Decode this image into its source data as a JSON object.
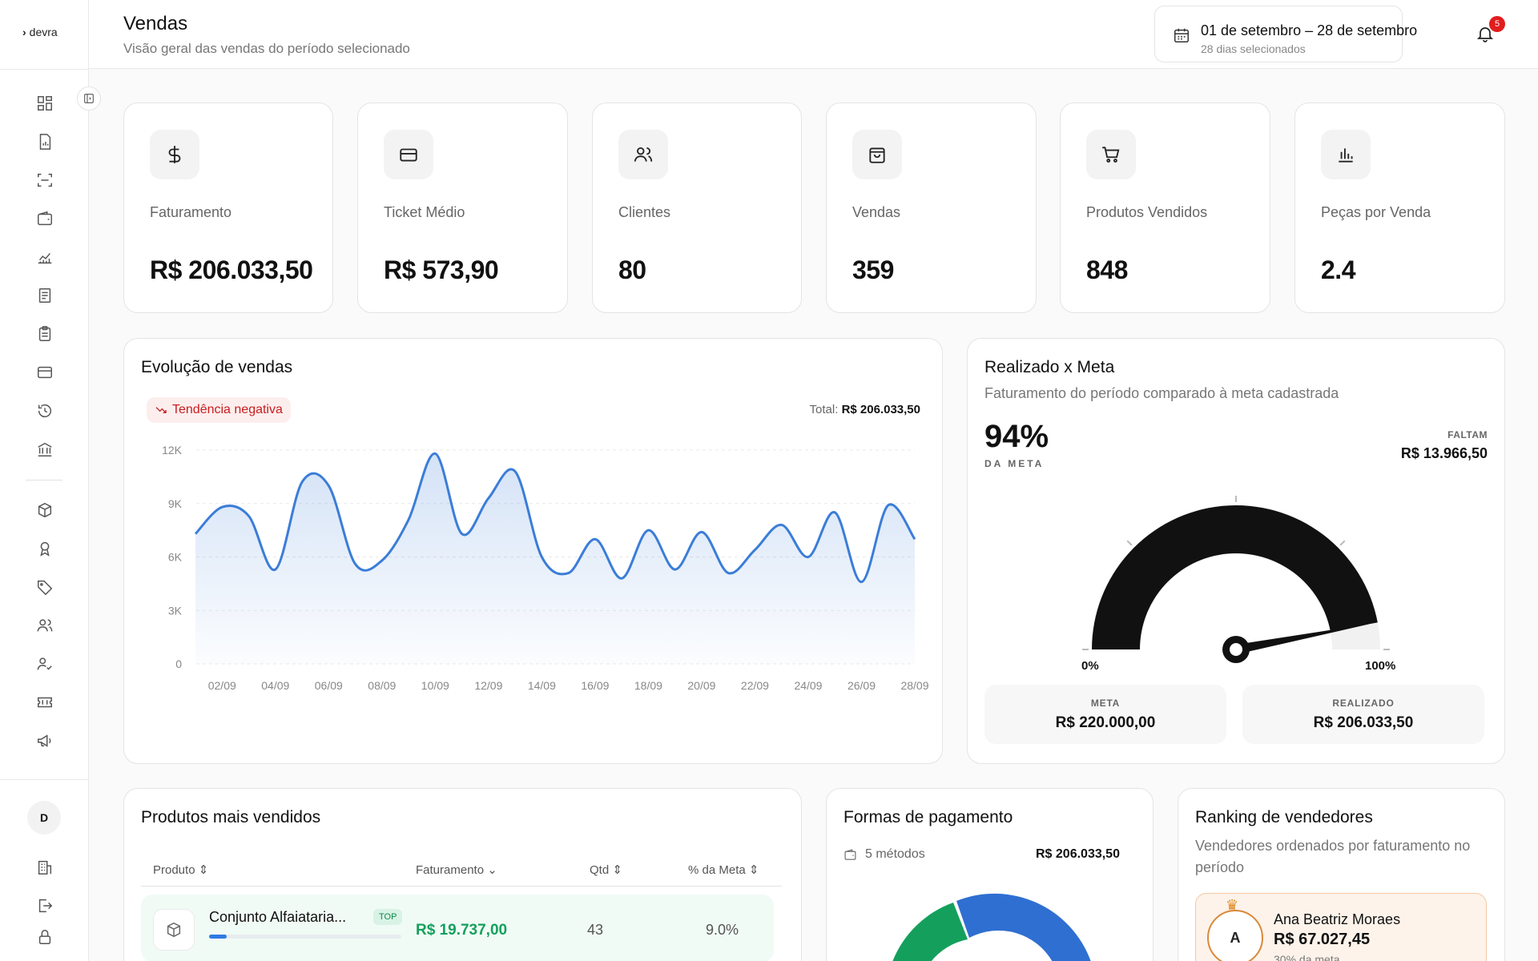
{
  "brand": "devra",
  "header": {
    "title": "Vendas",
    "subtitle": "Visão geral das vendas do período selecionado",
    "date_range": "01 de setembro – 28 de setembro",
    "date_days": "28 dias selecionados",
    "notifications_count": "5"
  },
  "sidebar": {
    "icons": [
      "dashboard-icon",
      "report-icon",
      "scan-icon",
      "wallet-icon",
      "chart-line-icon",
      "document-icon",
      "clipboard-icon",
      "card-icon",
      "history-icon",
      "bank-icon",
      "box-icon",
      "award-icon",
      "tag-icon",
      "users-icon",
      "user-check-icon",
      "ticket-icon",
      "megaphone-icon"
    ],
    "user_initial": "D",
    "bottom_icons": [
      "building-icon",
      "logout-icon",
      "lock-icon"
    ]
  },
  "kpis": [
    {
      "label": "Faturamento",
      "value": "R$ 206.033,50",
      "icon": "dollar-icon"
    },
    {
      "label": "Ticket Médio",
      "value": "R$ 573,90",
      "icon": "credit-card-icon"
    },
    {
      "label": "Clientes",
      "value": "80",
      "icon": "users-icon"
    },
    {
      "label": "Vendas",
      "value": "359",
      "icon": "shopping-bag-icon"
    },
    {
      "label": "Produtos Vendidos",
      "value": "848",
      "icon": "cart-icon"
    },
    {
      "label": "Peças por Venda",
      "value": "2.4",
      "icon": "bar-chart-icon"
    }
  ],
  "evolution": {
    "title": "Evolução de vendas",
    "trend": "Tendência negativa",
    "total_label": "Total:",
    "total_value": "R$ 206.033,50"
  },
  "chart_data": {
    "type": "area",
    "x": [
      "01/09",
      "02/09",
      "03/09",
      "04/09",
      "05/09",
      "06/09",
      "07/09",
      "08/09",
      "09/09",
      "10/09",
      "11/09",
      "12/09",
      "13/09",
      "14/09",
      "15/09",
      "16/09",
      "17/09",
      "18/09",
      "19/09",
      "20/09",
      "21/09",
      "22/09",
      "23/09",
      "24/09",
      "25/09",
      "26/09",
      "27/09",
      "28/09"
    ],
    "y": [
      7300,
      8800,
      8300,
      5300,
      10200,
      10000,
      5600,
      5800,
      8100,
      11800,
      7300,
      9300,
      10800,
      6000,
      5100,
      7000,
      4800,
      7500,
      5300,
      7400,
      5100,
      6400,
      7800,
      6000,
      8500,
      4600,
      8900,
      7000
    ],
    "tick_labels": [
      "02/09",
      "04/09",
      "06/09",
      "08/09",
      "10/09",
      "12/09",
      "14/09",
      "16/09",
      "18/09",
      "20/09",
      "22/09",
      "24/09",
      "26/09",
      "28/09"
    ],
    "yticks": [
      "0",
      "3K",
      "6K",
      "9K",
      "12K"
    ],
    "ylim": [
      0,
      12000
    ],
    "color": "#3b7dd8"
  },
  "goal": {
    "title": "Realizado x Meta",
    "subtitle": "Faturamento do período comparado à meta cadastrada",
    "percent": "94%",
    "percent_label": "DA META",
    "percent_value": 0.94,
    "faltam_label": "FALTAM",
    "faltam_value": "R$ 13.966,50",
    "min_label": "0%",
    "max_label": "100%",
    "meta_label": "META",
    "meta_value": "R$ 220.000,00",
    "realizado_label": "REALIZADO",
    "realizado_value": "R$ 206.033,50"
  },
  "products": {
    "title": "Produtos mais vendidos",
    "columns": {
      "produto": "Produto",
      "faturamento": "Faturamento",
      "qtd": "Qtd",
      "meta": "% da Meta"
    },
    "rows": [
      {
        "name": "Conjunto Alfaiataria...",
        "badge": "TOP",
        "revenue": "R$ 19.737,00",
        "qty": "43",
        "pct": "9.0%",
        "bar": 0.09
      }
    ]
  },
  "payments": {
    "title": "Formas de pagamento",
    "methods": "5 métodos",
    "total": "R$ 206.033,50"
  },
  "ranking": {
    "title": "Ranking de vendedores",
    "subtitle": "Vendedores ordenados por faturamento no período",
    "top": {
      "initial": "A",
      "name": "Ana Beatriz Moraes",
      "value": "R$ 67.027,45",
      "meta": "30% da meta"
    }
  }
}
